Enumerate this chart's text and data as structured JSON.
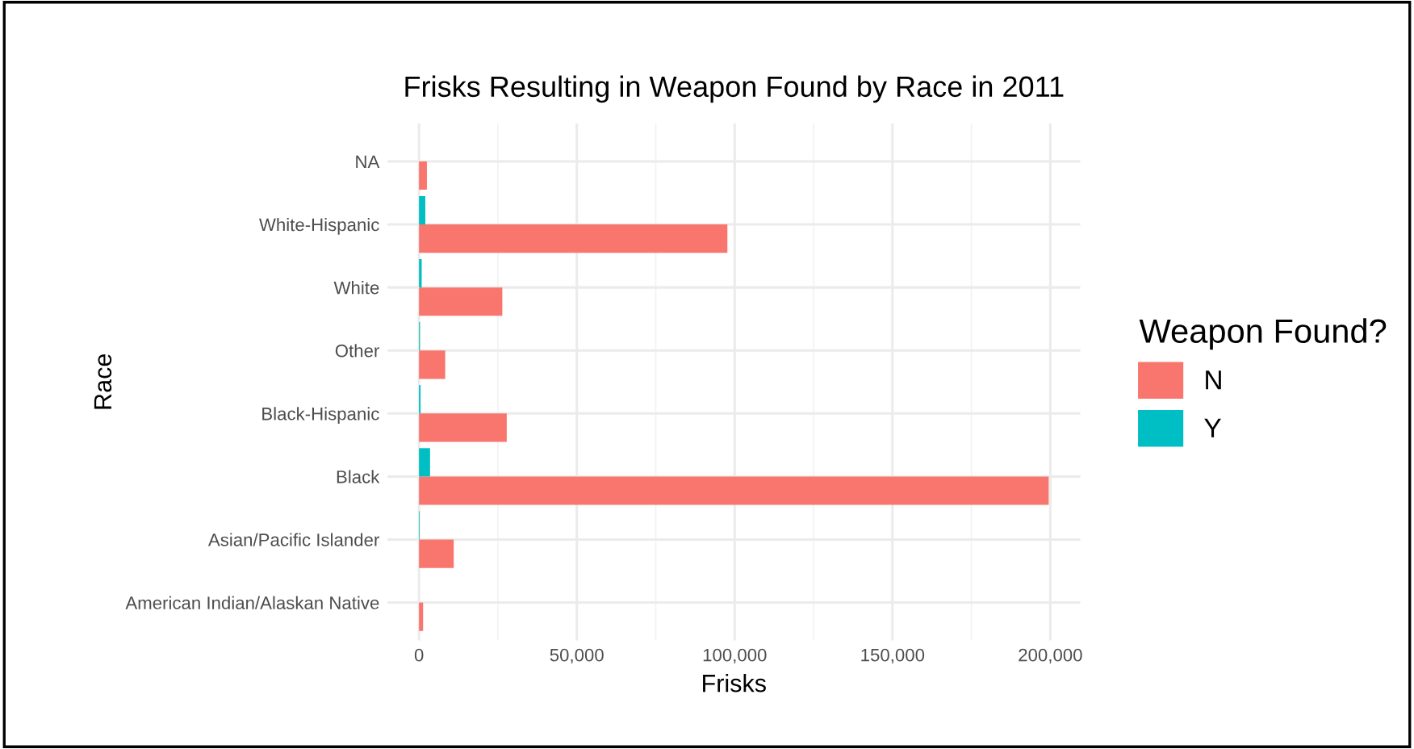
{
  "chart_data": {
    "type": "bar",
    "orientation": "horizontal",
    "title": "Frisks Resulting in Weapon Found by Race in 2011",
    "xlabel": "Frisks",
    "ylabel": "Race",
    "legend_title": "Weapon Found?",
    "legend": "right",
    "categories": [
      "NA",
      "White-Hispanic",
      "White",
      "Other",
      "Black-Hispanic",
      "Black",
      "Asian/Pacific Islander",
      "American Indian/Alaskan Native"
    ],
    "series": [
      {
        "name": "N",
        "color": "#f8766d",
        "values": [
          2500,
          97700,
          26400,
          8300,
          27800,
          199500,
          11000,
          1300
        ]
      },
      {
        "name": "Y",
        "color": "#00bfc4",
        "values": [
          null,
          2000,
          850,
          300,
          500,
          3500,
          200,
          null
        ]
      }
    ],
    "xlim": [
      -10000,
      209500
    ],
    "xticks": [
      {
        "value": 0,
        "label": "0"
      },
      {
        "value": 50000,
        "label": "50,000"
      },
      {
        "value": 100000,
        "label": "100,000"
      },
      {
        "value": 150000,
        "label": "150,000"
      },
      {
        "value": 200000,
        "label": "200,000"
      }
    ],
    "grid": true
  }
}
